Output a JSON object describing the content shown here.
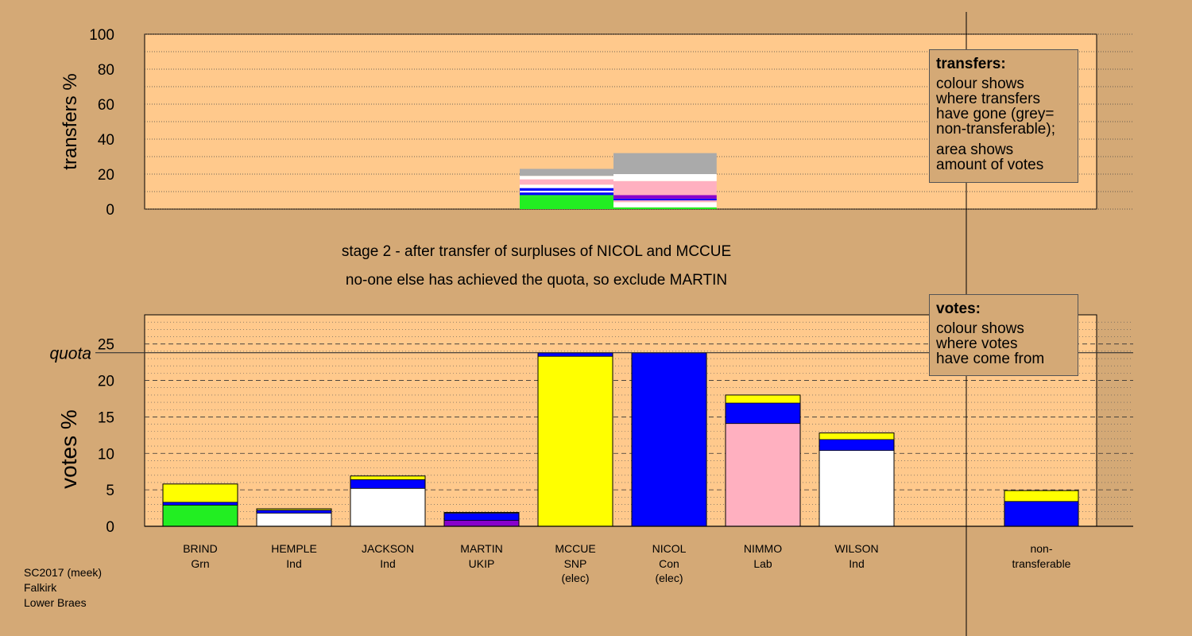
{
  "stage_title": "stage 2 - after transfer of surpluses of NICOL and MCCUE",
  "stage_subtitle": "no-one else has achieved the quota, so exclude MARTIN",
  "footer": [
    "SC2017 (meek)",
    "Falkirk",
    "Lower Braes"
  ],
  "legend_transfers": {
    "title": "transfers:",
    "lines": [
      "colour shows",
      "where transfers",
      "have gone (grey=",
      "non-transferable);"
    ],
    "lines2": [
      "area shows",
      "amount of votes"
    ]
  },
  "legend_votes": {
    "title": "votes:",
    "lines": [
      "colour shows",
      "where votes",
      "have come from"
    ]
  },
  "colors": {
    "Grn": "#22ee22",
    "Ind": "#ffffff",
    "UKIP": "#8800cc",
    "SNP": "#ffff00",
    "Con": "#0000ff",
    "Lab": "#ffb0c0",
    "nontransferable": "#aaaaaa",
    "panel_bg": "#ffc98c",
    "page_bg": "#d4a976"
  },
  "chart_data": [
    {
      "type": "bar",
      "name": "transfers",
      "ylabel": "transfers %",
      "ylim": [
        0,
        100
      ],
      "yticks": [
        0,
        20,
        40,
        60,
        80,
        100
      ],
      "grid": true,
      "bars": [
        {
          "source": "MCCUE",
          "x_range": [
            4,
            5
          ],
          "segments": [
            {
              "party": "Grn",
              "value": 7
            },
            {
              "party": "Grn",
              "value": 1
            },
            {
              "party": "Con",
              "value": 1.5
            },
            {
              "party": "Ind",
              "value": 1
            },
            {
              "party": "Con",
              "value": 1.5
            },
            {
              "party": "Ind",
              "value": 2
            },
            {
              "party": "Lab",
              "value": 3
            },
            {
              "party": "Ind",
              "value": 2
            },
            {
              "party": "nontransferable",
              "value": 4
            }
          ]
        },
        {
          "source": "NICOL",
          "x_range": [
            5,
            6.1
          ],
          "segments": [
            {
              "party": "Grn",
              "value": 1
            },
            {
              "party": "Ind",
              "value": 3
            },
            {
              "party": "Lab",
              "value": 1
            },
            {
              "party": "Con",
              "value": 1
            },
            {
              "party": "UKIP",
              "value": 2
            },
            {
              "party": "Lab",
              "value": 8
            },
            {
              "party": "Ind",
              "value": 4
            },
            {
              "party": "nontransferable",
              "value": 12
            }
          ]
        }
      ]
    },
    {
      "type": "bar",
      "name": "votes",
      "ylabel": "votes %",
      "ylim": [
        0,
        29
      ],
      "yticks": [
        0,
        5,
        10,
        15,
        20,
        25
      ],
      "quota": 23.8,
      "quota_label": "quota",
      "grid": true,
      "candidates": [
        {
          "name": "BRIND",
          "party": "Grn",
          "elec": "",
          "segments": [
            {
              "party": "Grn",
              "value": 2.9
            },
            {
              "party": "Con",
              "value": 0.4
            },
            {
              "party": "SNP",
              "value": 2.5
            }
          ]
        },
        {
          "name": "HEMPLE",
          "party": "Ind",
          "elec": "",
          "segments": [
            {
              "party": "Ind",
              "value": 1.8
            },
            {
              "party": "Con",
              "value": 0.4
            },
            {
              "party": "SNP",
              "value": 0.2
            }
          ]
        },
        {
          "name": "JACKSON",
          "party": "Ind",
          "elec": "",
          "segments": [
            {
              "party": "Ind",
              "value": 5.2
            },
            {
              "party": "Con",
              "value": 1.2
            },
            {
              "party": "SNP",
              "value": 0.5
            }
          ]
        },
        {
          "name": "MARTIN",
          "party": "UKIP",
          "elec": "",
          "segments": [
            {
              "party": "UKIP",
              "value": 0.8
            },
            {
              "party": "Con",
              "value": 1.0
            },
            {
              "party": "SNP",
              "value": 0.1
            }
          ]
        },
        {
          "name": "MCCUE",
          "party": "SNP",
          "elec": "(elec)",
          "segments": [
            {
              "party": "SNP",
              "value": 23.3
            },
            {
              "party": "Con",
              "value": 0.5
            }
          ]
        },
        {
          "name": "NICOL",
          "party": "Con",
          "elec": "(elec)",
          "segments": [
            {
              "party": "Con",
              "value": 23.8
            }
          ]
        },
        {
          "name": "NIMMO",
          "party": "Lab",
          "elec": "",
          "segments": [
            {
              "party": "Lab",
              "value": 14.1
            },
            {
              "party": "Con",
              "value": 2.8
            },
            {
              "party": "SNP",
              "value": 1.1
            }
          ]
        },
        {
          "name": "WILSON",
          "party": "Ind",
          "elec": "",
          "segments": [
            {
              "party": "Ind",
              "value": 10.4
            },
            {
              "party": "Con",
              "value": 1.5
            },
            {
              "party": "SNP",
              "value": 0.9
            }
          ]
        }
      ],
      "nontransferable": {
        "label1": "non-",
        "label2": "transferable",
        "segments": [
          {
            "party": "Con",
            "value": 3.4
          },
          {
            "party": "SNP",
            "value": 1.5
          }
        ]
      }
    }
  ]
}
